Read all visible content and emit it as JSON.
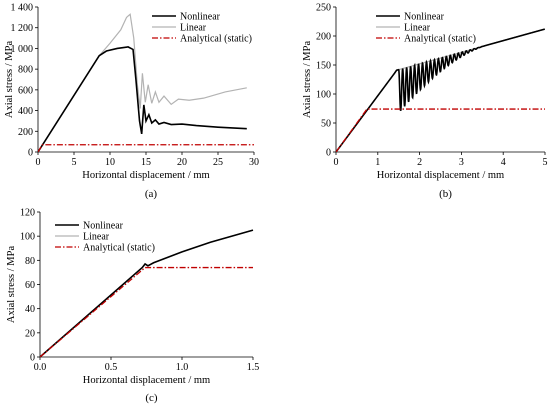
{
  "chart_data": [
    {
      "type": "line",
      "panel_label": "(a)",
      "xlabel": "Horizontal displacement / mm",
      "ylabel": "Axial stress / MPa",
      "xlim": [
        0,
        30
      ],
      "ylim": [
        0,
        1400
      ],
      "xticks": [
        0,
        5,
        10,
        15,
        20,
        25,
        30
      ],
      "yticks": [
        0,
        200,
        400,
        600,
        800,
        1000,
        1200,
        1400
      ],
      "ytick_labels": [
        "0",
        "200",
        "400",
        "600",
        "800",
        "1 000",
        "1 200",
        "1 400"
      ],
      "legend_position": "top-right",
      "series": [
        {
          "name": "Nonlinear",
          "color": "#000000",
          "style": "solid",
          "points": [
            [
              0,
              0
            ],
            [
              8.5,
              930
            ],
            [
              9.5,
              975
            ],
            [
              11,
              1000
            ],
            [
              12.5,
              1015
            ],
            [
              13.2,
              990
            ],
            [
              13.6,
              700
            ],
            [
              14.1,
              300
            ],
            [
              14.4,
              175
            ],
            [
              14.7,
              455
            ],
            [
              15,
              300
            ],
            [
              15.4,
              360
            ],
            [
              15.8,
              280
            ],
            [
              16.3,
              310
            ],
            [
              16.8,
              270
            ],
            [
              17.5,
              285
            ],
            [
              18.5,
              265
            ],
            [
              20,
              270
            ],
            [
              22,
              255
            ],
            [
              25,
              240
            ],
            [
              29,
              225
            ]
          ]
        },
        {
          "name": "Linear",
          "color": "#b3b3b3",
          "style": "solid",
          "points": [
            [
              0,
              0
            ],
            [
              8.5,
              930
            ],
            [
              10,
              1050
            ],
            [
              11.5,
              1180
            ],
            [
              12.3,
              1300
            ],
            [
              12.8,
              1330
            ],
            [
              13.3,
              1100
            ],
            [
              13.8,
              650
            ],
            [
              14.2,
              420
            ],
            [
              14.5,
              760
            ],
            [
              14.9,
              480
            ],
            [
              15.3,
              650
            ],
            [
              15.8,
              470
            ],
            [
              16.3,
              580
            ],
            [
              16.8,
              480
            ],
            [
              17.5,
              540
            ],
            [
              18.5,
              460
            ],
            [
              19.5,
              510
            ],
            [
              21,
              500
            ],
            [
              23,
              520
            ],
            [
              26,
              580
            ],
            [
              29,
              620
            ]
          ]
        },
        {
          "name": "Analytical (static)",
          "color": "#c00000",
          "style": "dashdot",
          "points": [
            [
              0,
              0
            ],
            [
              0.6,
              70
            ],
            [
              30,
              70
            ]
          ]
        }
      ]
    },
    {
      "type": "line",
      "panel_label": "(b)",
      "xlabel": "Horizontal displacement / mm",
      "ylabel": "Axial stress / MPa",
      "xlim": [
        0,
        5
      ],
      "ylim": [
        0,
        250
      ],
      "xticks": [
        0,
        1,
        2,
        3,
        4,
        5
      ],
      "yticks": [
        0,
        50,
        100,
        150,
        200,
        250
      ],
      "legend_position": "top-right",
      "series": [
        {
          "name": "Nonlinear",
          "color": "#000000",
          "style": "solid",
          "oscillation": {
            "start": 1.5,
            "end": 3.6,
            "period": 0.095
          }
        },
        {
          "name": "Linear",
          "color": "#b3b3b3",
          "style": "solid"
        },
        {
          "name": "Analytical (static)",
          "color": "#c00000",
          "style": "dashdot",
          "points": [
            [
              0,
              0
            ],
            [
              0.74,
              74
            ],
            [
              5,
              74
            ]
          ]
        }
      ]
    },
    {
      "type": "line",
      "panel_label": "(c)",
      "xlabel": "Horizontal displacement / mm",
      "ylabel": "Axial stress / MPa",
      "xlim": [
        0,
        1.5
      ],
      "ylim": [
        0,
        120
      ],
      "xticks": [
        0,
        0.5,
        1,
        1.5
      ],
      "xtick_labels": [
        "0.0",
        "0.5",
        "1.0",
        "1.5"
      ],
      "yticks": [
        0,
        20,
        40,
        60,
        80,
        100,
        120
      ],
      "legend_position": "top-left",
      "series": [
        {
          "name": "Nonlinear",
          "color": "#000000",
          "style": "solid",
          "points": [
            [
              0,
              0
            ],
            [
              0.72,
              74
            ],
            [
              0.74,
              77
            ],
            [
              0.76,
              75.5
            ],
            [
              0.8,
              78
            ],
            [
              1.0,
              87
            ],
            [
              1.2,
              95
            ],
            [
              1.5,
              105
            ]
          ]
        },
        {
          "name": "Linear",
          "color": "#b3b3b3",
          "style": "solid",
          "points": [
            [
              0,
              0
            ],
            [
              0.72,
              74
            ],
            [
              0.74,
              77
            ],
            [
              0.76,
              75.5
            ],
            [
              0.8,
              78
            ],
            [
              1.0,
              87
            ],
            [
              1.2,
              95
            ],
            [
              1.5,
              105
            ]
          ]
        },
        {
          "name": "Analytical (static)",
          "color": "#c00000",
          "style": "dashdot",
          "points": [
            [
              0,
              0
            ],
            [
              0.74,
              74
            ],
            [
              1.5,
              74
            ]
          ]
        }
      ]
    }
  ]
}
